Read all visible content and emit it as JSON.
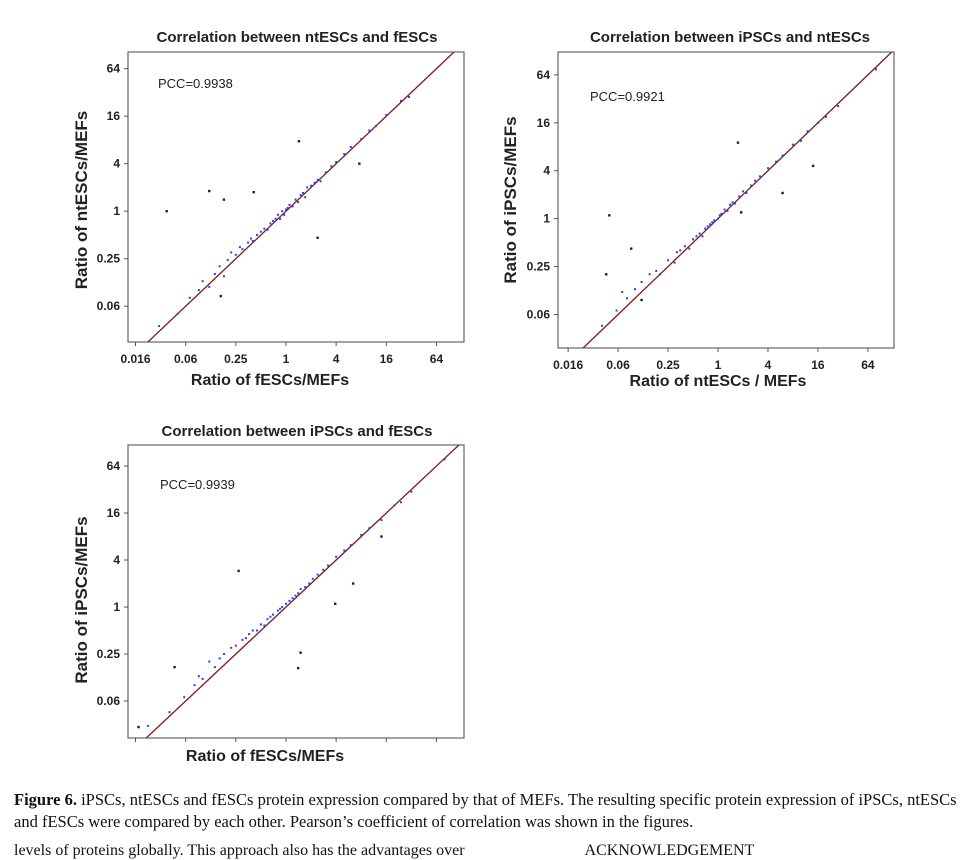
{
  "caption": {
    "label": "Figure 6.",
    "text": " iPSCs, ntESCs and fESCs protein expression compared by that of MEFs. The resulting specific protein expression of iPSCs, ntESCs and fESCs were compared by each other. Pearson’s coefficient of correlation was shown in the figures."
  },
  "next_line": {
    "text": "levels of proteins globally. This approach also has the advantages over",
    "heading": "ACKNOWLEDGEMENT"
  },
  "colors": {
    "cluster": "#3a3af0",
    "outlier": "#222222",
    "fit_line": "#7a1c1c",
    "frame": "#666666"
  },
  "chart_data": [
    {
      "type": "scatter",
      "title": "Correlation between ntESCs and fESCs",
      "xlabel": "Ratio of fESCs/MEFs",
      "ylabel": "Ratio of ntESCs/MEFs",
      "annotation": "PCC=0.9938",
      "scale": "log2",
      "xlim": [
        0.0127,
        137
      ],
      "ylim": [
        0.022,
        104
      ],
      "xticks": [
        {
          "v": 0.015625,
          "label": "0.016"
        },
        {
          "v": 0.0625,
          "label": "0.06"
        },
        {
          "v": 0.25,
          "label": "0.25"
        },
        {
          "v": 1,
          "label": "1"
        },
        {
          "v": 4,
          "label": "4"
        },
        {
          "v": 16,
          "label": "16"
        },
        {
          "v": 64,
          "label": "64"
        }
      ],
      "yticks": [
        {
          "v": 0.0625,
          "label": "0.06"
        },
        {
          "v": 0.25,
          "label": "0.25"
        },
        {
          "v": 1,
          "label": "1"
        },
        {
          "v": 4,
          "label": "4"
        },
        {
          "v": 16,
          "label": "16"
        },
        {
          "v": 64,
          "label": "64"
        }
      ],
      "fit": "y=x",
      "points": [
        [
          0.02,
          0.019
        ],
        [
          0.03,
          0.035
        ],
        [
          0.05,
          0.05
        ],
        [
          0.07,
          0.08
        ],
        [
          0.09,
          0.1
        ],
        [
          0.1,
          0.13
        ],
        [
          0.12,
          0.11
        ],
        [
          0.14,
          0.16
        ],
        [
          0.16,
          0.2
        ],
        [
          0.18,
          0.15
        ],
        [
          0.2,
          0.24
        ],
        [
          0.22,
          0.3
        ],
        [
          0.25,
          0.28
        ],
        [
          0.28,
          0.35
        ],
        [
          0.3,
          0.33
        ],
        [
          0.35,
          0.4
        ],
        [
          0.38,
          0.45
        ],
        [
          0.4,
          0.42
        ],
        [
          0.45,
          0.5
        ],
        [
          0.5,
          0.55
        ],
        [
          0.55,
          0.6
        ],
        [
          0.6,
          0.58
        ],
        [
          0.65,
          0.7
        ],
        [
          0.7,
          0.75
        ],
        [
          0.75,
          0.8
        ],
        [
          0.8,
          0.9
        ],
        [
          0.85,
          0.8
        ],
        [
          0.9,
          1.0
        ],
        [
          0.95,
          0.9
        ],
        [
          1.0,
          1.05
        ],
        [
          1.05,
          1.1
        ],
        [
          1.1,
          1.2
        ],
        [
          1.2,
          1.15
        ],
        [
          1.3,
          1.4
        ],
        [
          1.4,
          1.3
        ],
        [
          1.5,
          1.6
        ],
        [
          1.6,
          1.7
        ],
        [
          1.7,
          1.5
        ],
        [
          1.8,
          2.0
        ],
        [
          2.0,
          2.1
        ],
        [
          2.2,
          2.3
        ],
        [
          2.4,
          2.5
        ],
        [
          2.6,
          2.4
        ],
        [
          3,
          3.1
        ],
        [
          3.5,
          3.7
        ],
        [
          4,
          4.2
        ],
        [
          5,
          5.3
        ],
        [
          6,
          6.5
        ],
        [
          8,
          8.2
        ],
        [
          10,
          10.5
        ],
        [
          12,
          12
        ],
        [
          16,
          16.5
        ],
        [
          24,
          25
        ],
        [
          30,
          28
        ]
      ],
      "outliers": [
        [
          0.037,
          1.0
        ],
        [
          0.12,
          1.8
        ],
        [
          0.18,
          1.4
        ],
        [
          0.41,
          1.74
        ],
        [
          1.43,
          7.7
        ],
        [
          2.4,
          0.46
        ],
        [
          0.165,
          0.084
        ],
        [
          7.6,
          4.0
        ]
      ]
    },
    {
      "type": "scatter",
      "title": "Correlation between iPSCs and ntESCs",
      "xlabel": "Ratio of ntESCs / MEFs",
      "ylabel": "Ratio of iPSCs/MEFs",
      "annotation": "PCC=0.9921",
      "scale": "log2",
      "xlim": [
        0.0118,
        132
      ],
      "ylim": [
        0.0237,
        124
      ],
      "xticks": [
        {
          "v": 0.015625,
          "label": "0.016"
        },
        {
          "v": 0.0625,
          "label": "0.06"
        },
        {
          "v": 0.25,
          "label": "0.25"
        },
        {
          "v": 1,
          "label": "1"
        },
        {
          "v": 4,
          "label": "4"
        },
        {
          "v": 16,
          "label": "16"
        },
        {
          "v": 64,
          "label": "64"
        }
      ],
      "yticks": [
        {
          "v": 0.0625,
          "label": "0.06"
        },
        {
          "v": 0.25,
          "label": "0.25"
        },
        {
          "v": 1,
          "label": "1"
        },
        {
          "v": 4,
          "label": "4"
        },
        {
          "v": 16,
          "label": "16"
        },
        {
          "v": 64,
          "label": "64"
        }
      ],
      "fit": "y=x",
      "points": [
        [
          0.018,
          0.017
        ],
        [
          0.04,
          0.045
        ],
        [
          0.06,
          0.07
        ],
        [
          0.07,
          0.12
        ],
        [
          0.08,
          0.1
        ],
        [
          0.1,
          0.13
        ],
        [
          0.12,
          0.16
        ],
        [
          0.15,
          0.2
        ],
        [
          0.18,
          0.22
        ],
        [
          0.2,
          0.2
        ],
        [
          0.25,
          0.3
        ],
        [
          0.3,
          0.28
        ],
        [
          0.32,
          0.38
        ],
        [
          0.35,
          0.4
        ],
        [
          0.4,
          0.45
        ],
        [
          0.45,
          0.42
        ],
        [
          0.5,
          0.55
        ],
        [
          0.55,
          0.6
        ],
        [
          0.6,
          0.65
        ],
        [
          0.65,
          0.6
        ],
        [
          0.7,
          0.75
        ],
        [
          0.75,
          0.8
        ],
        [
          0.8,
          0.85
        ],
        [
          0.85,
          0.9
        ],
        [
          0.9,
          0.95
        ],
        [
          1.0,
          1.0
        ],
        [
          1.05,
          1.1
        ],
        [
          1.1,
          1.15
        ],
        [
          1.2,
          1.3
        ],
        [
          1.3,
          1.25
        ],
        [
          1.4,
          1.5
        ],
        [
          1.5,
          1.6
        ],
        [
          1.6,
          1.55
        ],
        [
          1.8,
          1.9
        ],
        [
          2.0,
          2.2
        ],
        [
          2.2,
          2.1
        ],
        [
          2.5,
          2.6
        ],
        [
          2.8,
          3.0
        ],
        [
          3.2,
          3.4
        ],
        [
          4,
          4.3
        ],
        [
          5,
          5.2
        ],
        [
          6,
          6.2
        ],
        [
          8,
          8.5
        ],
        [
          10,
          9.5
        ],
        [
          12,
          12.5
        ],
        [
          16,
          16
        ],
        [
          20,
          19
        ],
        [
          28,
          26
        ],
        [
          80,
          75
        ]
      ],
      "outliers": [
        [
          0.049,
          1.1
        ],
        [
          1.74,
          9.0
        ],
        [
          14,
          4.6
        ],
        [
          6,
          2.1
        ],
        [
          0.09,
          0.42
        ],
        [
          0.045,
          0.2
        ],
        [
          0.12,
          0.095
        ],
        [
          1.9,
          1.2
        ]
      ]
    },
    {
      "type": "scatter",
      "title": "Correlation between iPSCs and fESCs",
      "xlabel": "Ratio of fESCs/MEFs",
      "ylabel": "Ratio of iPSCs/MEFs",
      "annotation": "PCC=0.9939",
      "scale": "log2",
      "xlim": [
        0.0127,
        137
      ],
      "ylim": [
        0.021,
        119
      ],
      "xticks": [
        {
          "v": 0.015625,
          "label": ""
        },
        {
          "v": 0.0625,
          "label": ""
        },
        {
          "v": 0.25,
          "label": ""
        },
        {
          "v": 1,
          "label": ""
        },
        {
          "v": 4,
          "label": ""
        },
        {
          "v": 16,
          "label": ""
        },
        {
          "v": 64,
          "label": ""
        }
      ],
      "yticks": [
        {
          "v": 0.0625,
          "label": "0.06"
        },
        {
          "v": 0.25,
          "label": "0.25"
        },
        {
          "v": 1,
          "label": "1"
        },
        {
          "v": 4,
          "label": "4"
        },
        {
          "v": 16,
          "label": "16"
        },
        {
          "v": 64,
          "label": "64"
        }
      ],
      "fit": "y=x",
      "points": [
        [
          0.022,
          0.03
        ],
        [
          0.04,
          0.045
        ],
        [
          0.06,
          0.07
        ],
        [
          0.08,
          0.1
        ],
        [
          0.09,
          0.13
        ],
        [
          0.1,
          0.12
        ],
        [
          0.12,
          0.2
        ],
        [
          0.14,
          0.17
        ],
        [
          0.16,
          0.22
        ],
        [
          0.18,
          0.25
        ],
        [
          0.22,
          0.3
        ],
        [
          0.25,
          0.32
        ],
        [
          0.3,
          0.38
        ],
        [
          0.33,
          0.4
        ],
        [
          0.36,
          0.45
        ],
        [
          0.4,
          0.5
        ],
        [
          0.45,
          0.5
        ],
        [
          0.5,
          0.6
        ],
        [
          0.55,
          0.58
        ],
        [
          0.6,
          0.7
        ],
        [
          0.65,
          0.75
        ],
        [
          0.7,
          0.8
        ],
        [
          0.8,
          0.9
        ],
        [
          0.85,
          0.95
        ],
        [
          0.9,
          1.0
        ],
        [
          1.0,
          1.1
        ],
        [
          1.1,
          1.2
        ],
        [
          1.2,
          1.3
        ],
        [
          1.3,
          1.4
        ],
        [
          1.4,
          1.5
        ],
        [
          1.5,
          1.7
        ],
        [
          1.7,
          1.8
        ],
        [
          1.9,
          2.0
        ],
        [
          2.1,
          2.3
        ],
        [
          2.4,
          2.6
        ],
        [
          2.8,
          3.0
        ],
        [
          3.2,
          3.4
        ],
        [
          4,
          4.4
        ],
        [
          5,
          5.3
        ],
        [
          6,
          6.2
        ],
        [
          8,
          8.4
        ],
        [
          10,
          10.2
        ],
        [
          14,
          13
        ],
        [
          20,
          20
        ],
        [
          24,
          22
        ],
        [
          32,
          30
        ],
        [
          80,
          78
        ]
      ],
      "outliers": [
        [
          0.27,
          2.9
        ],
        [
          0.046,
          0.17
        ],
        [
          1.5,
          0.26
        ],
        [
          1.4,
          0.165
        ],
        [
          3.9,
          1.1
        ],
        [
          6.4,
          2.0
        ],
        [
          14,
          8
        ],
        [
          0.017,
          0.029
        ]
      ]
    }
  ]
}
